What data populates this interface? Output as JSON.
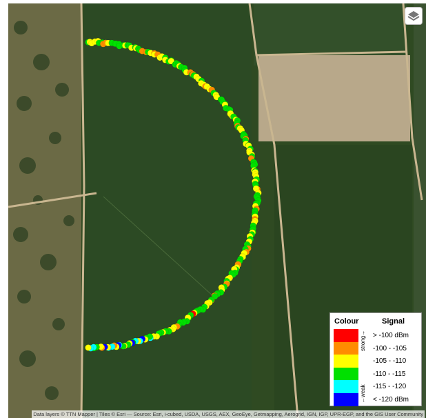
{
  "legend": {
    "title_colour": "Colour",
    "title_signal": "Signal",
    "strong": "strong→",
    "weak": "←weak",
    "entries": [
      {
        "color": "#ff0000",
        "label": "> -100 dBm"
      },
      {
        "color": "#ff8c00",
        "label": "-100 - -105"
      },
      {
        "color": "#ffff00",
        "label": "-105 - -110"
      },
      {
        "color": "#00e000",
        "label": "-110 - -115"
      },
      {
        "color": "#00ffff",
        "label": "-115 - -120"
      },
      {
        "color": "#0000ff",
        "label": "< -120 dBm"
      }
    ]
  },
  "attribution": "Data layers © TTN Mapper | Tiles © Esri — Source: Esri, i-cubed, USDA, USGS, AEX, GeoEye, Getmapping, Aerogrid, IGN, IGP, UPR-EGP, and the GIS User Community"
}
